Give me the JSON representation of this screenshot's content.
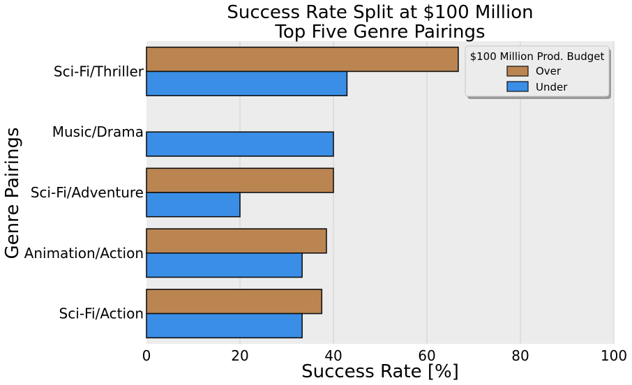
{
  "chart_data": {
    "type": "bar",
    "orientation": "horizontal",
    "title": [
      "Success Rate Split at $100 Million",
      "Top Five Genre Pairings"
    ],
    "xlabel": "Success Rate [%]",
    "ylabel": "Genre Pairings",
    "xlim": [
      0,
      100
    ],
    "xticks": [
      "0",
      "20",
      "40",
      "60",
      "80",
      "100"
    ],
    "categories": [
      "Sci-Fi/Thriller",
      "Music/Drama",
      "Sci-Fi/Adventure",
      "Animation/Action",
      "Sci-Fi/Action"
    ],
    "series": [
      {
        "name": "Over",
        "color": "#bb8552",
        "values": [
          66.7,
          null,
          40.0,
          38.5,
          37.5
        ]
      },
      {
        "name": "Under",
        "color": "#3a8ee6",
        "values": [
          42.9,
          40.0,
          20.0,
          33.3,
          33.3
        ]
      }
    ],
    "legend": {
      "title": "$100 Million Prod. Budget",
      "placement": "top-right"
    },
    "grid": "vertical",
    "background": "#ececec"
  }
}
